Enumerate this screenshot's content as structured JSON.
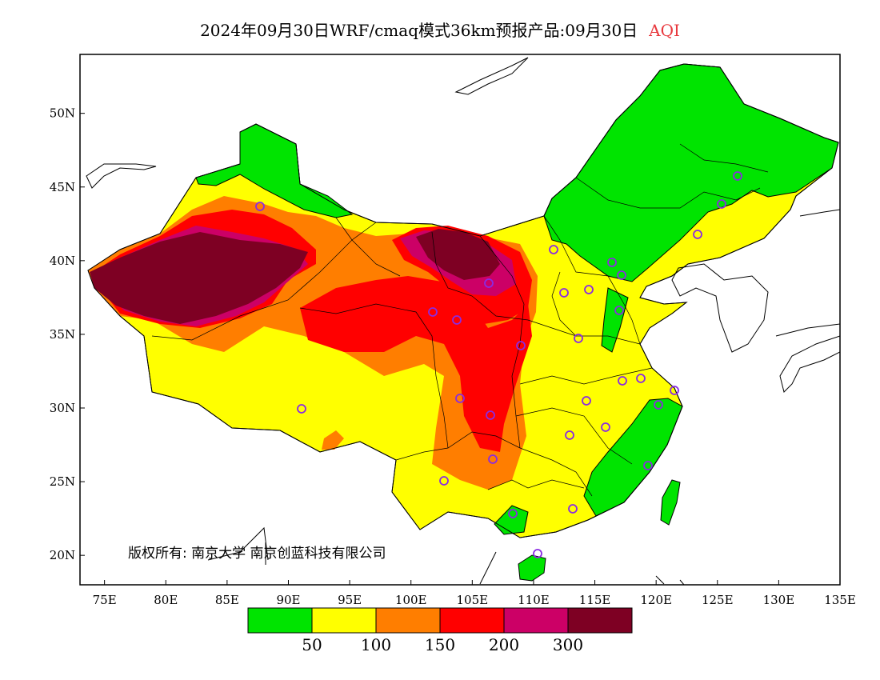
{
  "title": {
    "main": "2024年09月30日WRF/cmaq模式36km预报产品:09月30日",
    "variable": "AQI"
  },
  "map": {
    "lon_range": [
      73,
      135
    ],
    "lat_range": [
      18,
      54
    ],
    "lat_ticks": [
      {
        "value": 50,
        "label": "50N"
      },
      {
        "value": 45,
        "label": "45N"
      },
      {
        "value": 40,
        "label": "40N"
      },
      {
        "value": 35,
        "label": "35N"
      },
      {
        "value": 30,
        "label": "30N"
      },
      {
        "value": 25,
        "label": "25N"
      },
      {
        "value": 20,
        "label": "20N"
      }
    ],
    "lon_ticks": [
      {
        "value": 75,
        "label": "75E"
      },
      {
        "value": 80,
        "label": "80E"
      },
      {
        "value": 85,
        "label": "85E"
      },
      {
        "value": 90,
        "label": "90E"
      },
      {
        "value": 95,
        "label": "95E"
      },
      {
        "value": 100,
        "label": "100E"
      },
      {
        "value": 105,
        "label": "105E"
      },
      {
        "value": 110,
        "label": "110E"
      },
      {
        "value": 115,
        "label": "115E"
      },
      {
        "value": 120,
        "label": "120E"
      },
      {
        "value": 125,
        "label": "125E"
      },
      {
        "value": 130,
        "label": "130E"
      },
      {
        "value": 135,
        "label": "135E"
      }
    ],
    "copyright": "版权所有: 南京大学  南京创蓝科技有限公司",
    "station_marker_color": "#8a2be2"
  },
  "legend": {
    "colors": [
      "#00e400",
      "#ffff00",
      "#ff7e00",
      "#ff0000",
      "#cc0066",
      "#7e0023"
    ],
    "labels": [
      "50",
      "100",
      "150",
      "200",
      "300"
    ]
  }
}
